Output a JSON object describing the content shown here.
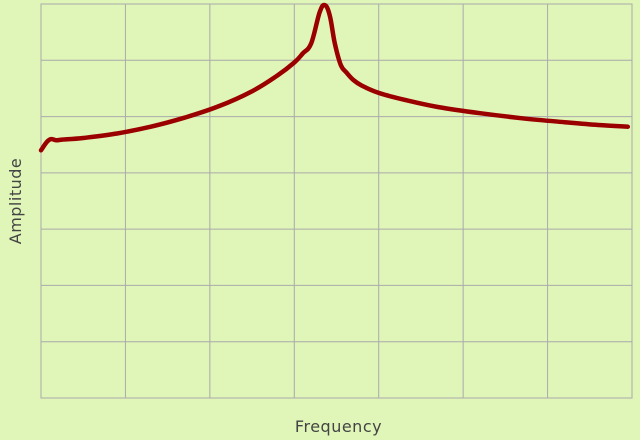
{
  "chart_data": {
    "type": "line",
    "title": "",
    "xlabel": "Frequency",
    "ylabel": "Amplitude",
    "xlim": [
      0,
      7
    ],
    "ylim": [
      0,
      7
    ],
    "grid": true,
    "legend": "none",
    "background_color": "#e0f5b8",
    "grid_color": "#aaaaaa",
    "series": [
      {
        "color": "#9b0000",
        "x": [
          0,
          0.07,
          0.12,
          0.18,
          0.25,
          0.5,
          0.9,
          1.3,
          1.7,
          2.1,
          2.5,
          2.8,
          3.0,
          3.1,
          3.2,
          3.3,
          3.36,
          3.42,
          3.48,
          3.55,
          3.62,
          3.7,
          3.8,
          4.0,
          4.3,
          4.7,
          5.2,
          5.7,
          6.2,
          6.6,
          6.95
        ],
        "y": [
          4.4,
          4.55,
          4.6,
          4.58,
          4.59,
          4.62,
          4.7,
          4.82,
          4.98,
          5.18,
          5.45,
          5.73,
          5.96,
          6.12,
          6.3,
          6.85,
          6.98,
          6.8,
          6.3,
          5.92,
          5.78,
          5.65,
          5.55,
          5.42,
          5.3,
          5.17,
          5.06,
          4.97,
          4.9,
          4.85,
          4.82
        ]
      }
    ]
  }
}
